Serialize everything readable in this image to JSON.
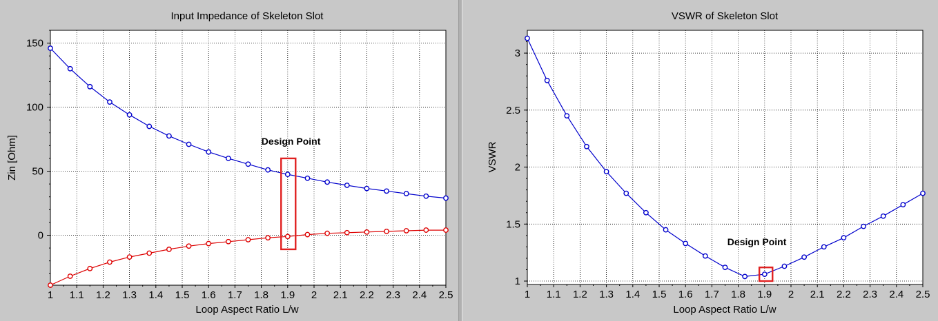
{
  "chart_data": [
    {
      "type": "line",
      "title": "Input Impedance of Skeleton Slot",
      "xlabel": "Loop Aspect Ratio L/w",
      "ylabel": "Zin [Ohm]",
      "xlim": [
        1,
        2.5
      ],
      "ylim": [
        -39,
        160
      ],
      "x_ticks": [
        1,
        1.1,
        1.2,
        1.3,
        1.4,
        1.5,
        1.6,
        1.7,
        1.8,
        1.9,
        2,
        2.1,
        2.2,
        2.3,
        2.4,
        2.5
      ],
      "x_tick_labels": [
        "1",
        "1.1",
        "1.2",
        "1.3",
        "1.4",
        "1.5",
        "1.6",
        "1.7",
        "1.8",
        "1.9",
        "2",
        "2.1",
        "2.2",
        "2.3",
        "2.4",
        "2.5"
      ],
      "y_ticks": [
        0,
        50,
        100,
        150
      ],
      "y_tick_labels": [
        "0",
        "50",
        "100",
        "150"
      ],
      "grid": true,
      "x": [
        1.0,
        1.075,
        1.15,
        1.225,
        1.3,
        1.375,
        1.45,
        1.525,
        1.6,
        1.675,
        1.75,
        1.825,
        1.9,
        1.975,
        2.05,
        2.125,
        2.2,
        2.275,
        2.35,
        2.425,
        2.5
      ],
      "series": [
        {
          "color": "#0000cc",
          "values": [
            146,
            130,
            116,
            104,
            94,
            85,
            77.5,
            71,
            65,
            60,
            55.5,
            51,
            47.5,
            44.5,
            41.5,
            39,
            36.5,
            34.5,
            32.5,
            30.5,
            29
          ]
        },
        {
          "color": "#dd0000",
          "values": [
            -39,
            -32,
            -26,
            -21,
            -17,
            -14,
            -11,
            -8.5,
            -6.5,
            -5,
            -3.5,
            -2,
            -1,
            0.5,
            1.5,
            2,
            2.5,
            3,
            3.5,
            4,
            4
          ]
        }
      ],
      "annotation": {
        "text": "Design Point",
        "x": 1.9,
        "y_range": [
          -11,
          60
        ],
        "x_range": [
          1.875,
          1.93
        ]
      }
    },
    {
      "type": "line",
      "title": "VSWR of Skeleton Slot",
      "xlabel": "Loop Aspect Ratio L/w",
      "ylabel": "VSWR",
      "xlim": [
        1,
        2.5
      ],
      "ylim": [
        0.97,
        3.2
      ],
      "x_ticks": [
        1,
        1.1,
        1.2,
        1.3,
        1.4,
        1.5,
        1.6,
        1.7,
        1.8,
        1.9,
        2,
        2.1,
        2.2,
        2.3,
        2.4,
        2.5
      ],
      "x_tick_labels": [
        "1",
        "1.1",
        "1.2",
        "1.3",
        "1.4",
        "1.5",
        "1.6",
        "1.7",
        "1.8",
        "1.9",
        "2",
        "2.1",
        "2.2",
        "2.3",
        "2.4",
        "2.5"
      ],
      "y_ticks": [
        1,
        1.5,
        2,
        2.5,
        3
      ],
      "y_tick_labels": [
        "1",
        "1.5",
        "2",
        "2.5",
        "3"
      ],
      "grid": true,
      "x": [
        1.0,
        1.075,
        1.15,
        1.225,
        1.3,
        1.375,
        1.45,
        1.525,
        1.6,
        1.675,
        1.75,
        1.825,
        1.9,
        1.975,
        2.05,
        2.125,
        2.2,
        2.275,
        2.35,
        2.425,
        2.5
      ],
      "series": [
        {
          "color": "#0000cc",
          "values": [
            3.13,
            2.76,
            2.45,
            2.18,
            1.96,
            1.77,
            1.6,
            1.45,
            1.33,
            1.22,
            1.12,
            1.04,
            1.06,
            1.13,
            1.21,
            1.3,
            1.38,
            1.48,
            1.57,
            1.67,
            1.77
          ]
        }
      ],
      "annotation": {
        "text": "Design Point",
        "x": 1.9,
        "y_range": [
          1.0,
          1.12
        ],
        "x_range": [
          1.88,
          1.93
        ]
      }
    }
  ]
}
